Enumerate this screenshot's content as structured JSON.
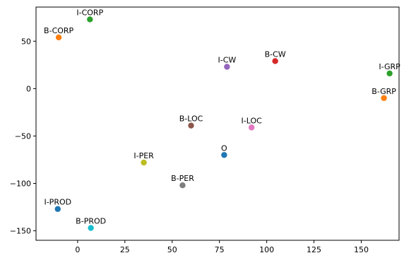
{
  "chart_data": {
    "type": "scatter",
    "title": "",
    "xlabel": "",
    "ylabel": "",
    "xlim": [
      -22,
      170
    ],
    "ylim": [
      -160,
      86
    ],
    "xticks": [
      0,
      25,
      50,
      75,
      100,
      125,
      150
    ],
    "yticks": [
      50,
      0,
      -50,
      -100,
      -150
    ],
    "xtick_labels": [
      "0",
      "25",
      "50",
      "75",
      "100",
      "125",
      "150"
    ],
    "ytick_labels": [
      "50",
      "0",
      "−50",
      "−100",
      "−150"
    ],
    "grid": false,
    "points": [
      {
        "label": "I-CORP",
        "x": 6.5,
        "y": 73,
        "color": "#2ca02c"
      },
      {
        "label": "B-CORP",
        "x": -10,
        "y": 54,
        "color": "#ff7f0e"
      },
      {
        "label": "I-CW",
        "x": 79,
        "y": 23,
        "color": "#9467bd"
      },
      {
        "label": "B-CW",
        "x": 104.5,
        "y": 29,
        "color": "#d62728"
      },
      {
        "label": "I-GRP",
        "x": 165,
        "y": 16,
        "color": "#2ca02c"
      },
      {
        "label": "B-GRP",
        "x": 162,
        "y": -10,
        "color": "#ff7f0e"
      },
      {
        "label": "B-LOC",
        "x": 60,
        "y": -39,
        "color": "#8c564b"
      },
      {
        "label": "I-LOC",
        "x": 92,
        "y": -41,
        "color": "#e377c2"
      },
      {
        "label": "O",
        "x": 77.5,
        "y": -70,
        "color": "#1f77b4"
      },
      {
        "label": "I-PER",
        "x": 35,
        "y": -78,
        "color": "#bcbd22"
      },
      {
        "label": "B-PER",
        "x": 55.5,
        "y": -102,
        "color": "#7f7f7f"
      },
      {
        "label": "I-PROD",
        "x": -10.5,
        "y": -127,
        "color": "#1f77b4"
      },
      {
        "label": "B-PROD",
        "x": 7,
        "y": -147,
        "color": "#17becf"
      }
    ]
  }
}
